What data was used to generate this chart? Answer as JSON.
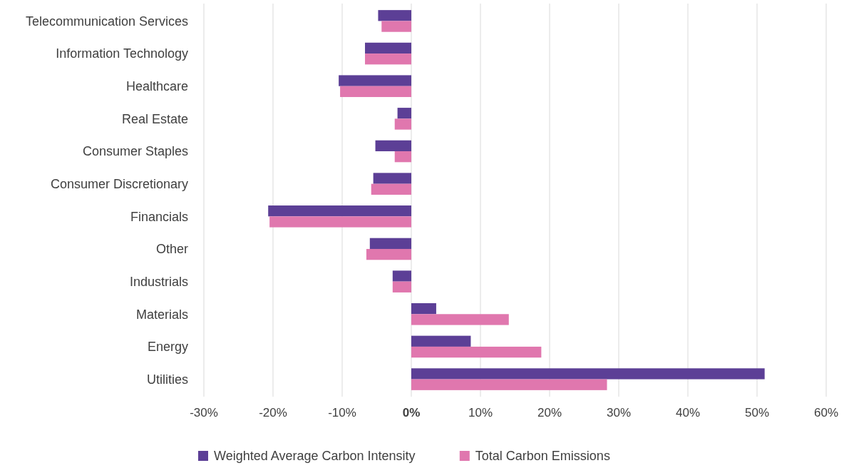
{
  "chart_data": {
    "type": "bar",
    "orientation": "horizontal",
    "categories": [
      "Telecommunication Services",
      "Information Technology",
      "Healthcare",
      "Real Estate",
      "Consumer Staples",
      "Consumer Discretionary",
      "Financials",
      "Other",
      "Industrials",
      "Materials",
      "Energy",
      "Utilities"
    ],
    "series": [
      {
        "name": "Weighted Average Carbon Intensity",
        "color": "#5c3f96",
        "values": [
          -4.8,
          -6.7,
          -10.5,
          -2.0,
          -5.2,
          -5.5,
          -20.7,
          -6.0,
          -2.7,
          3.6,
          8.6,
          51.1
        ]
      },
      {
        "name": "Total Carbon Emissions",
        "color": "#e077ae",
        "values": [
          -4.3,
          -6.7,
          -10.3,
          -2.4,
          -2.4,
          -5.8,
          -20.5,
          -6.5,
          -2.7,
          14.1,
          18.8,
          28.3
        ]
      }
    ],
    "xlim": [
      -30,
      60
    ],
    "xticks": [
      {
        "value": -30,
        "label": "-30%"
      },
      {
        "value": -20,
        "label": "-20%"
      },
      {
        "value": -10,
        "label": "-10%"
      },
      {
        "value": 0,
        "label": "0%"
      },
      {
        "value": 10,
        "label": "10%"
      },
      {
        "value": 20,
        "label": "20%"
      },
      {
        "value": 30,
        "label": "30%"
      },
      {
        "value": 40,
        "label": "40%"
      },
      {
        "value": 50,
        "label": "50%"
      },
      {
        "value": 60,
        "label": "60%"
      }
    ],
    "grid": "x",
    "legend": "bottom"
  }
}
